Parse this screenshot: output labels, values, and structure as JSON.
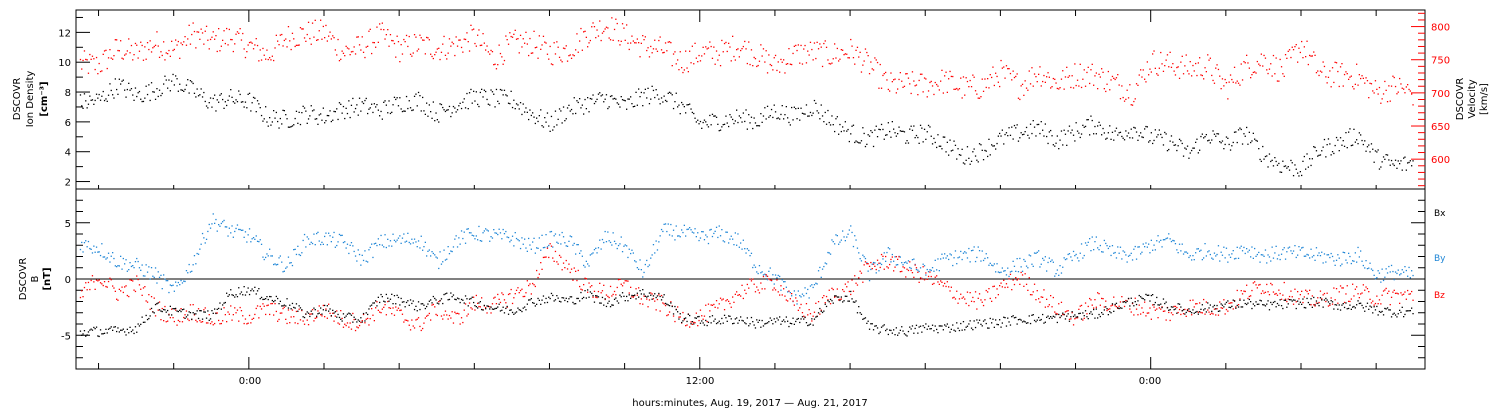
{
  "xaxis": {
    "title": "hours:minutes, Aug. 19, 2017 — Aug. 21, 2017",
    "tick_labels": [
      "0:00",
      "12:00",
      "0:00"
    ],
    "range_hours": [
      -4.6,
      31.3
    ]
  },
  "colors": {
    "black": "#000000",
    "red": "#ff0000",
    "blue": "#1f86d6"
  },
  "chart_data": [
    {
      "type": "scatter",
      "panel": "top",
      "ylabel_left": [
        "DSCOVR",
        "Ion Density",
        "[cm⁻³]"
      ],
      "ylabel_right": [
        "DSCOVR",
        "Velocity",
        "[km/s]"
      ],
      "ylim_left": [
        1.5,
        13.5
      ],
      "ylim_right": [
        555,
        825
      ],
      "yticks_left": [
        "2",
        "4",
        "6",
        "8",
        "10",
        "12"
      ],
      "yticks_right": [
        "600",
        "650",
        "700",
        "750",
        "800"
      ],
      "series": [
        {
          "axis": "left",
          "color": "black",
          "step_hours": 0.5,
          "x_start": -4.5,
          "values": [
            7.3,
            7.5,
            8.5,
            7.8,
            8.2,
            8.8,
            8.1,
            7.3,
            7.6,
            7.4,
            6.3,
            6.2,
            6.6,
            6.4,
            6.9,
            7.1,
            6.8,
            7.3,
            7.5,
            6.6,
            7.2,
            7.7,
            7.6,
            7.5,
            6.6,
            5.9,
            6.9,
            7.3,
            7.6,
            7.1,
            7.8,
            7.9,
            7.1,
            5.9,
            6.1,
            6.3,
            6.1,
            6.8,
            6.4,
            7.1,
            6.1,
            5.3,
            4.9,
            5.5,
            5.1,
            5.3,
            4.6,
            3.7,
            4.1,
            4.9,
            5.3,
            5.6,
            4.8,
            5.4,
            5.9,
            5.1,
            5.6,
            5.0,
            4.7,
            3.9,
            5.2,
            4.5,
            5.3,
            3.8,
            3.1,
            2.9,
            4.2,
            4.6,
            5.2,
            3.6,
            3.1,
            3.3
          ]
        },
        {
          "axis": "right",
          "color": "red",
          "step_hours": 0.5,
          "x_start": -4.5,
          "values": [
            745,
            742,
            768,
            760,
            776,
            765,
            790,
            778,
            785,
            771,
            757,
            785,
            790,
            792,
            762,
            770,
            788,
            767,
            774,
            768,
            773,
            786,
            752,
            776,
            776,
            762,
            766,
            790,
            803,
            786,
            771,
            766,
            748,
            761,
            760,
            772,
            758,
            741,
            759,
            762,
            758,
            764,
            743,
            712,
            714,
            712,
            719,
            708,
            710,
            731,
            711,
            733,
            715,
            729,
            728,
            716,
            702,
            748,
            744,
            738,
            741,
            709,
            740,
            751,
            733,
            774,
            729,
            728,
            725,
            701,
            711,
            699
          ]
        }
      ]
    },
    {
      "type": "scatter",
      "panel": "bottom",
      "ylabel_left": [
        "DSCOVR",
        "B",
        "[nT]"
      ],
      "ylim": [
        -8,
        8
      ],
      "yticks": [
        "-5",
        "0",
        "5"
      ],
      "legend": [
        "Bx",
        "By",
        "Bz"
      ],
      "legend_placement": "right",
      "series": [
        {
          "name": "Bx",
          "color": "black",
          "step_hours": 0.5,
          "x_start": -4.5,
          "values": [
            -4.7,
            -4.6,
            -4.6,
            -4.3,
            -2.4,
            -2.9,
            -3.1,
            -3.2,
            -1.2,
            -0.9,
            -1.6,
            -2.1,
            -3.1,
            -2.6,
            -3.4,
            -3.5,
            -1.6,
            -1.8,
            -2.4,
            -1.8,
            -1.5,
            -2.1,
            -2.5,
            -2.8,
            -2.0,
            -1.6,
            -1.9,
            -1.3,
            -2.1,
            -1.5,
            -1.2,
            -1.6,
            -3.4,
            -3.7,
            -3.6,
            -3.5,
            -3.9,
            -3.7,
            -3.8,
            -3.6,
            -1.8,
            -1.5,
            -4.3,
            -4.5,
            -4.6,
            -4.3,
            -4.3,
            -4.1,
            -3.9,
            -3.8,
            -3.5,
            -3.5,
            -3.4,
            -3.2,
            -3.1,
            -2.5,
            -1.9,
            -1.7,
            -2.4,
            -2.8,
            -2.5,
            -2.3,
            -2.1,
            -2.3,
            -2.2,
            -2.1,
            -2.0,
            -2.3,
            -2.3,
            -2.7,
            -2.9,
            -2.8
          ]
        },
        {
          "name": "By",
          "color": "blue",
          "step_hours": 0.5,
          "x_start": -4.5,
          "values": [
            3.2,
            2.8,
            1.6,
            1.2,
            0.4,
            -1.1,
            1.5,
            5.3,
            4.3,
            3.9,
            2.1,
            1.2,
            3.5,
            3.7,
            3.3,
            1.8,
            3.3,
            3.5,
            3.6,
            1.5,
            3.5,
            4.1,
            3.9,
            3.7,
            2.9,
            3.6,
            3.5,
            1.4,
            3.8,
            2.9,
            0.6,
            4.3,
            4.2,
            3.7,
            4.1,
            3.5,
            1.2,
            0.1,
            -1.6,
            -0.9,
            3.1,
            4.1,
            0.5,
            2.2,
            1.5,
            0.6,
            1.8,
            2.1,
            2.3,
            0.7,
            1.3,
            1.9,
            0.8,
            2.2,
            3.3,
            2.3,
            2.1,
            3.1,
            3.5,
            2.1,
            2.6,
            2.2,
            2.8,
            2.1,
            2.4,
            2.3,
            2.1,
            1.8,
            2.2,
            0.4,
            0.7,
            0.3
          ]
        },
        {
          "name": "Bz",
          "color": "red",
          "step_hours": 0.5,
          "x_start": -4.5,
          "values": [
            -1.5,
            0.3,
            -1.2,
            -0.4,
            -2.5,
            -3.4,
            -2.8,
            -3.6,
            -3.1,
            -3.3,
            -2.6,
            -3.3,
            -3.4,
            -2.7,
            -3.6,
            -3.8,
            -2.4,
            -3.2,
            -4.1,
            -2.5,
            -3.6,
            -2.1,
            -2.3,
            -1.4,
            -0.6,
            2.5,
            1.1,
            -0.8,
            -1.2,
            -0.5,
            -1.8,
            -2.2,
            -3.5,
            -3.3,
            -2.5,
            -1.2,
            -0.5,
            -0.2,
            -2.3,
            -3.1,
            -1.3,
            -0.7,
            1.2,
            1.7,
            0.9,
            0.3,
            -0.7,
            -1.6,
            -2.0,
            -0.7,
            0.2,
            -1.2,
            -2.6,
            -3.4,
            -1.9,
            -2.1,
            -2.3,
            -2.8,
            -3.0,
            -2.4,
            -2.5,
            -2.4,
            -1.2,
            -0.5,
            -1.0,
            -1.7,
            -1.8,
            -1.3,
            -1.1,
            -1.6,
            -1.4,
            -1.5
          ]
        }
      ]
    }
  ]
}
